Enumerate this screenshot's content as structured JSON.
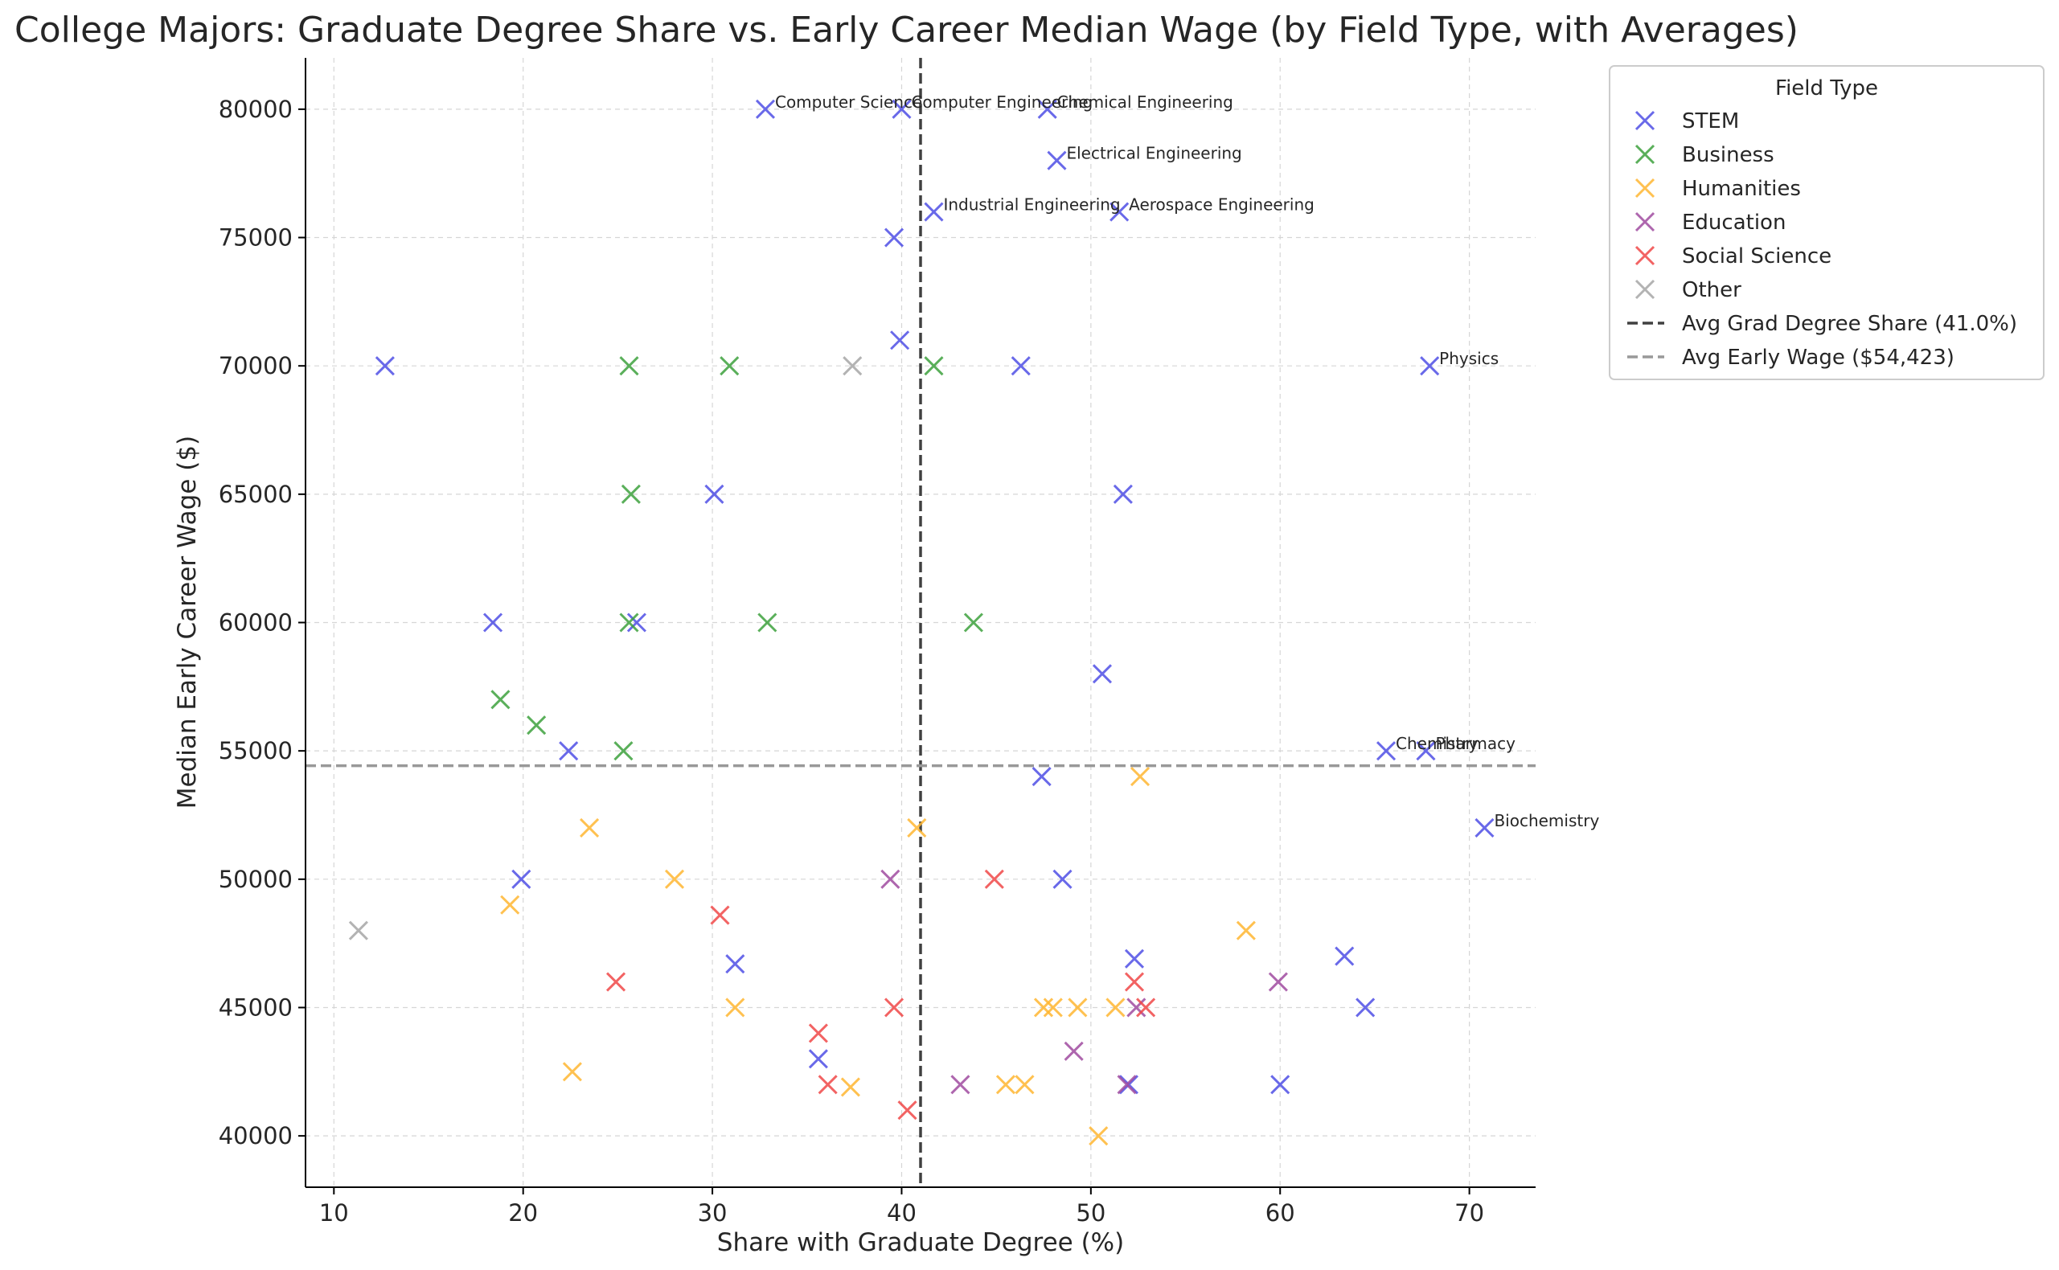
{
  "chart_data": {
    "type": "scatter",
    "title": "College Majors: Graduate Degree Share vs. Early Career Median Wage (by Field Type, with Averages)",
    "xlabel": "Share with Graduate Degree (%)",
    "ylabel": "Median Early Career Wage ($)",
    "xlim": [
      8.5,
      73.5
    ],
    "ylim": [
      38000,
      82000
    ],
    "xticks": [
      10,
      20,
      30,
      40,
      50,
      60,
      70
    ],
    "yticks": [
      40000,
      45000,
      50000,
      55000,
      60000,
      65000,
      70000,
      75000,
      80000
    ],
    "grid": true,
    "marker": "x",
    "legend": {
      "title": "Field Type",
      "placement": "outside-top-right"
    },
    "reference_lines": [
      {
        "name": "Avg Grad Degree Share (41.0%)",
        "orientation": "vertical",
        "value": 41.0,
        "color": "#404040"
      },
      {
        "name": "Avg Early Wage ($54,423)",
        "orientation": "horizontal",
        "value": 54423,
        "color": "#999999"
      }
    ],
    "series": [
      {
        "name": "STEM",
        "color": "#5050e6",
        "points": [
          {
            "x": 32.8,
            "y": 80000,
            "label": "Computer Science"
          },
          {
            "x": 40.0,
            "y": 80000,
            "label": "Computer Engineering"
          },
          {
            "x": 47.7,
            "y": 80000,
            "label": "Chemical Engineering"
          },
          {
            "x": 48.2,
            "y": 78000,
            "label": "Electrical Engineering"
          },
          {
            "x": 41.7,
            "y": 76000,
            "label": "Industrial Engineering"
          },
          {
            "x": 51.5,
            "y": 76000,
            "label": "Aerospace Engineering"
          },
          {
            "x": 39.6,
            "y": 75000
          },
          {
            "x": 12.7,
            "y": 70000
          },
          {
            "x": 39.9,
            "y": 71000
          },
          {
            "x": 46.3,
            "y": 70000
          },
          {
            "x": 67.9,
            "y": 70000,
            "label": "Physics"
          },
          {
            "x": 30.1,
            "y": 65000
          },
          {
            "x": 51.7,
            "y": 65000
          },
          {
            "x": 18.4,
            "y": 60000
          },
          {
            "x": 26.0,
            "y": 60000
          },
          {
            "x": 50.6,
            "y": 58000
          },
          {
            "x": 22.4,
            "y": 55000
          },
          {
            "x": 65.6,
            "y": 55000,
            "label": "Chemistry"
          },
          {
            "x": 67.7,
            "y": 55000,
            "label": "Pharmacy"
          },
          {
            "x": 47.4,
            "y": 54000
          },
          {
            "x": 70.8,
            "y": 52000,
            "label": "Biochemistry"
          },
          {
            "x": 19.9,
            "y": 50000
          },
          {
            "x": 48.5,
            "y": 50000
          },
          {
            "x": 31.2,
            "y": 46700
          },
          {
            "x": 52.3,
            "y": 46900
          },
          {
            "x": 63.4,
            "y": 47000
          },
          {
            "x": 64.5,
            "y": 45000
          },
          {
            "x": 35.6,
            "y": 43000
          },
          {
            "x": 60.0,
            "y": 42000
          },
          {
            "x": 52.0,
            "y": 42000
          }
        ]
      },
      {
        "name": "Business",
        "color": "#3ea23e",
        "points": [
          {
            "x": 25.6,
            "y": 70000
          },
          {
            "x": 30.9,
            "y": 70000
          },
          {
            "x": 41.7,
            "y": 70000
          },
          {
            "x": 25.7,
            "y": 65000
          },
          {
            "x": 25.6,
            "y": 60000
          },
          {
            "x": 32.9,
            "y": 60000
          },
          {
            "x": 43.8,
            "y": 60000
          },
          {
            "x": 18.8,
            "y": 57000
          },
          {
            "x": 20.7,
            "y": 56000
          },
          {
            "x": 25.3,
            "y": 55000
          }
        ]
      },
      {
        "name": "Humanities",
        "color": "#ffb732",
        "points": [
          {
            "x": 52.6,
            "y": 54000
          },
          {
            "x": 23.5,
            "y": 52000
          },
          {
            "x": 40.8,
            "y": 52000
          },
          {
            "x": 28.0,
            "y": 50000
          },
          {
            "x": 19.3,
            "y": 49000
          },
          {
            "x": 58.2,
            "y": 48000
          },
          {
            "x": 31.2,
            "y": 45000
          },
          {
            "x": 47.5,
            "y": 45000
          },
          {
            "x": 48.0,
            "y": 45000
          },
          {
            "x": 49.3,
            "y": 45000
          },
          {
            "x": 51.3,
            "y": 45000
          },
          {
            "x": 22.6,
            "y": 42500
          },
          {
            "x": 37.3,
            "y": 41900
          },
          {
            "x": 45.5,
            "y": 42000
          },
          {
            "x": 46.5,
            "y": 42000
          },
          {
            "x": 50.4,
            "y": 40000
          }
        ]
      },
      {
        "name": "Education",
        "color": "#a04ca0",
        "points": [
          {
            "x": 39.4,
            "y": 50000
          },
          {
            "x": 59.9,
            "y": 46000
          },
          {
            "x": 52.4,
            "y": 45000
          },
          {
            "x": 49.1,
            "y": 43300
          },
          {
            "x": 43.1,
            "y": 42000
          },
          {
            "x": 51.9,
            "y": 42000
          }
        ]
      },
      {
        "name": "Social Science",
        "color": "#f04848",
        "points": [
          {
            "x": 44.9,
            "y": 50000
          },
          {
            "x": 30.4,
            "y": 48600
          },
          {
            "x": 24.9,
            "y": 46000
          },
          {
            "x": 52.3,
            "y": 46000
          },
          {
            "x": 39.6,
            "y": 45000
          },
          {
            "x": 52.9,
            "y": 45000
          },
          {
            "x": 35.6,
            "y": 44000
          },
          {
            "x": 36.1,
            "y": 42000
          },
          {
            "x": 40.3,
            "y": 41000
          }
        ]
      },
      {
        "name": "Other",
        "color": "#a6a6a6",
        "points": [
          {
            "x": 37.4,
            "y": 70000
          },
          {
            "x": 11.3,
            "y": 48000
          }
        ]
      }
    ]
  }
}
